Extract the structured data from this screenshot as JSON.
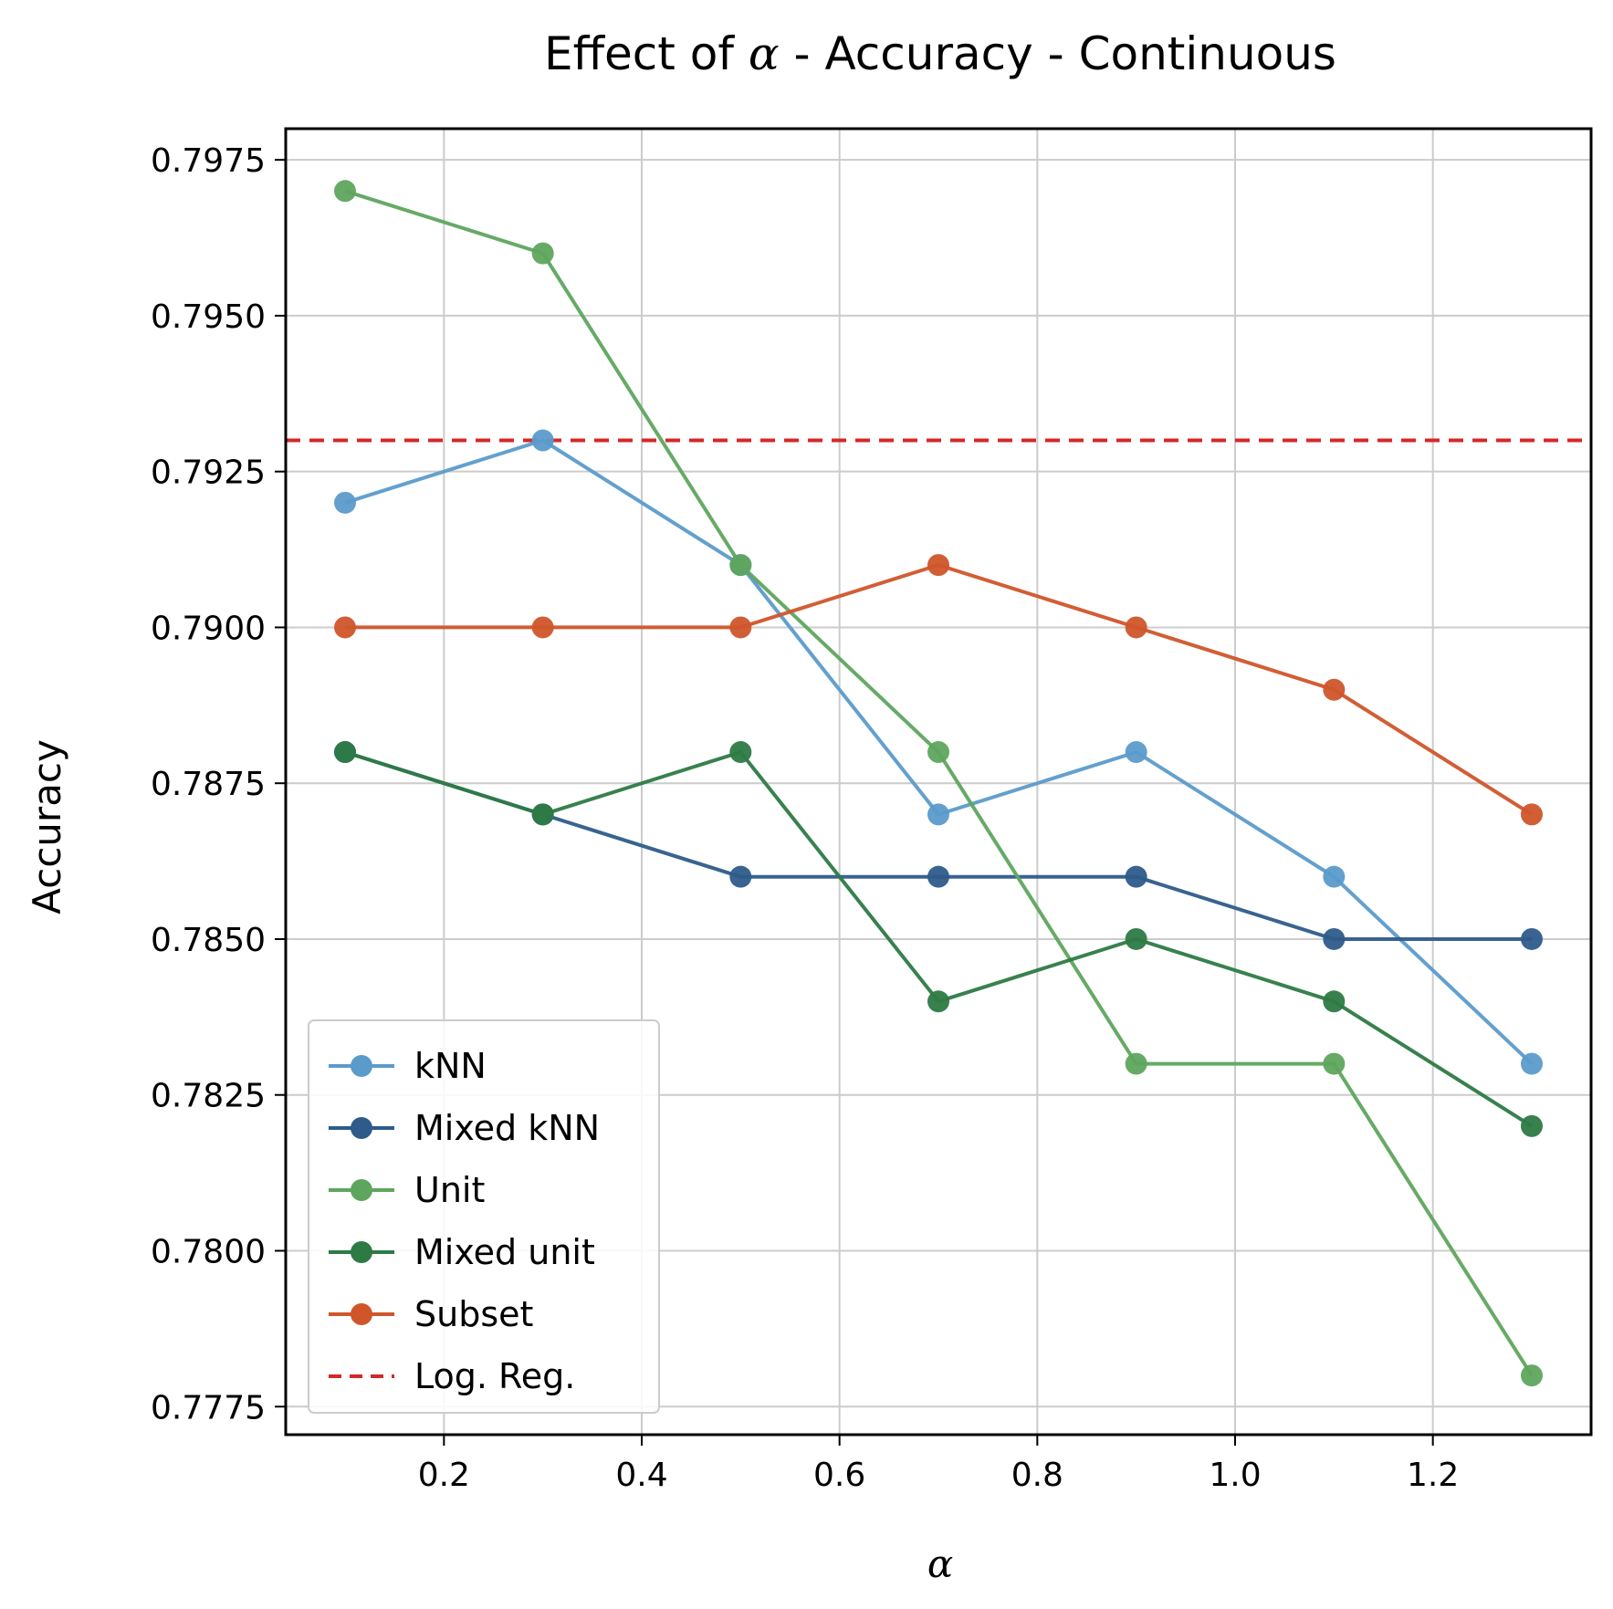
{
  "chart_data": {
    "type": "line",
    "title_prefix": "Effect of ",
    "title_symbol": "α",
    "title_suffix": " - Accuracy - Continuous",
    "xlabel": "α",
    "ylabel": "Accuracy",
    "x": [
      0.1,
      0.3,
      0.5,
      0.7,
      0.9,
      1.1,
      1.3
    ],
    "xlim": [
      0.04,
      1.36
    ],
    "ylim": [
      0.77705,
      0.798
    ],
    "xticks": [
      0.2,
      0.4,
      0.6,
      0.8,
      1.0,
      1.2
    ],
    "xtick_labels": [
      "0.2",
      "0.4",
      "0.6",
      "0.8",
      "1.0",
      "1.2"
    ],
    "yticks": [
      0.7775,
      0.78,
      0.7825,
      0.785,
      0.7875,
      0.79,
      0.7925,
      0.795,
      0.7975
    ],
    "ytick_labels": [
      "0.7775",
      "0.7800",
      "0.7825",
      "0.7850",
      "0.7875",
      "0.7900",
      "0.7925",
      "0.7950",
      "0.7975"
    ],
    "grid": true,
    "legend_position": "lower-left",
    "series": [
      {
        "name": "kNN",
        "color": "#5b9bcb",
        "values": [
          0.792,
          0.793,
          0.791,
          0.787,
          0.788,
          0.786,
          0.783
        ]
      },
      {
        "name": "Mixed kNN",
        "color": "#2e5b8a",
        "values": [
          0.788,
          0.787,
          0.786,
          0.786,
          0.786,
          0.785,
          0.785
        ]
      },
      {
        "name": "Unit",
        "color": "#5ea55e",
        "values": [
          0.797,
          0.796,
          0.791,
          0.788,
          0.783,
          0.783,
          0.778
        ]
      },
      {
        "name": "Mixed unit",
        "color": "#2d7a45",
        "values": [
          0.788,
          0.787,
          0.788,
          0.784,
          0.785,
          0.784,
          0.782
        ]
      },
      {
        "name": "Subset",
        "color": "#d0552b",
        "values": [
          0.79,
          0.79,
          0.79,
          0.791,
          0.79,
          0.789,
          0.787
        ]
      }
    ],
    "reference_line": {
      "name": "Log. Reg.",
      "color": "#d62728",
      "value": 0.793,
      "style": "dashed"
    }
  }
}
